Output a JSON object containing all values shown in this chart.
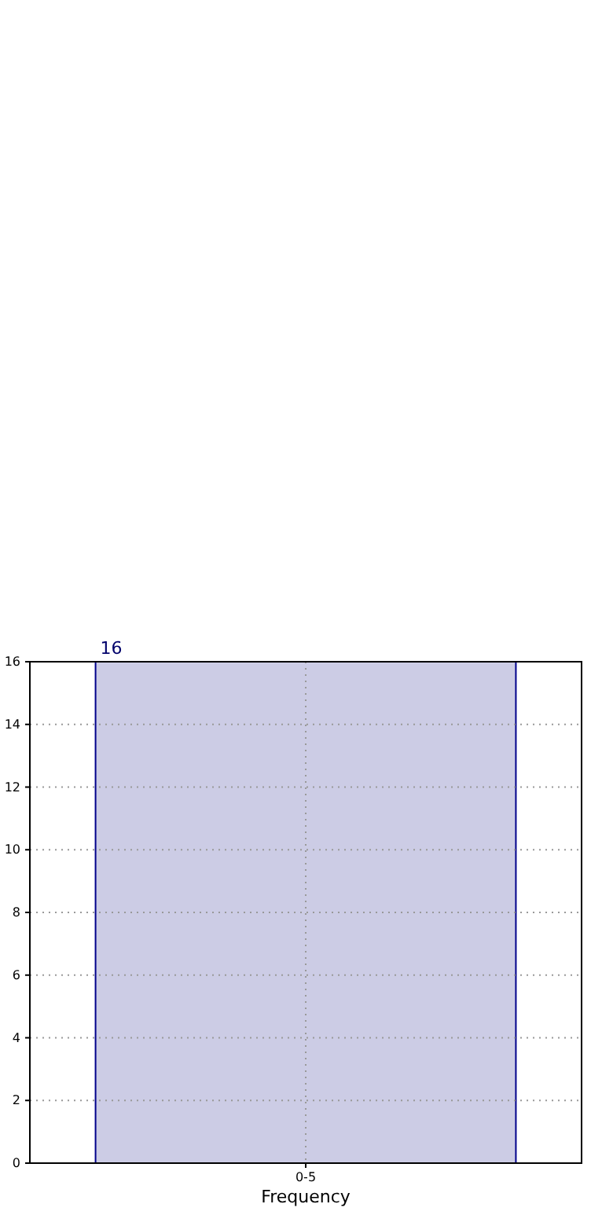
{
  "chart_data": {
    "type": "bar",
    "xlabel": "Frequency",
    "categories": [
      "0-5"
    ],
    "values": [
      16
    ],
    "color": "#cccce5",
    "ylim": [
      0,
      16
    ],
    "yticks": [
      0,
      2,
      4,
      6,
      8,
      10,
      12,
      14,
      16
    ],
    "grid": true,
    "data_labels": true
  }
}
